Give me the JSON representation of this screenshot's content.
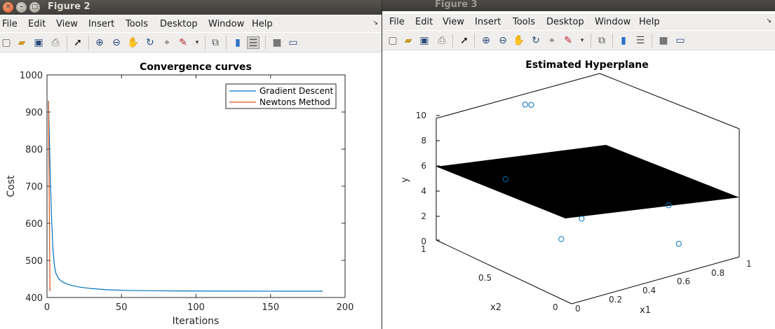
{
  "figure2": {
    "title": "Figure 2",
    "menu": [
      "File",
      "Edit",
      "View",
      "Insert",
      "Tools",
      "Desktop",
      "Window",
      "Help"
    ],
    "toolbar_icons": [
      "new-icon",
      "open-icon",
      "save-icon",
      "print-icon",
      "pointer-icon",
      "zoom-in-icon",
      "zoom-out-icon",
      "pan-icon",
      "rotate-icon",
      "data-cursor-icon",
      "brush-icon",
      "link-plot-icon",
      "colorbar-icon",
      "legend-icon",
      "hide-tools-icon",
      "show-tools-icon"
    ],
    "chart_data": {
      "type": "line",
      "title": "Convergence curves",
      "xlabel": "Iterations",
      "ylabel": "Cost",
      "xlim": [
        0,
        200
      ],
      "ylim": [
        400,
        1000
      ],
      "xticks": [
        0,
        50,
        100,
        150,
        200
      ],
      "yticks": [
        400,
        500,
        600,
        700,
        800,
        900,
        1000
      ],
      "legend_position": "top-right",
      "series": [
        {
          "name": "Gradient Descent",
          "color": "#0072bd",
          "x": [
            1,
            2,
            3,
            4,
            5,
            6,
            8,
            10,
            13,
            17,
            22,
            30,
            40,
            55,
            75,
            100,
            130,
            160,
            185
          ],
          "y": [
            930,
            760,
            620,
            530,
            485,
            465,
            450,
            443,
            437,
            432,
            428,
            424,
            421,
            419,
            418,
            417.5,
            417.2,
            417,
            417
          ]
        },
        {
          "name": "Newtons Method",
          "color": "#d95319",
          "x": [
            1,
            2
          ],
          "y": [
            930,
            417
          ]
        }
      ]
    }
  },
  "figure3": {
    "title": "Figure 3",
    "menu": [
      "File",
      "Edit",
      "View",
      "Insert",
      "Tools",
      "Desktop",
      "Window",
      "Help"
    ],
    "toolbar_icons": [
      "new-icon",
      "open-icon",
      "save-icon",
      "print-icon",
      "pointer-icon",
      "zoom-in-icon",
      "zoom-out-icon",
      "pan-icon",
      "rotate-icon",
      "data-cursor-icon",
      "brush-icon",
      "link-plot-icon",
      "colorbar-icon",
      "legend-icon",
      "hide-tools-icon",
      "show-tools-icon"
    ],
    "chart_data": {
      "type": "scatter",
      "title": "Estimated Hyperplane",
      "xlabel": "x1",
      "ylabel": "y",
      "zlabel": "x2",
      "x1_ticks": [
        "0",
        "0.2",
        "0.4",
        "0.6",
        "0.8",
        "1"
      ],
      "x2_ticks": [
        "0",
        "0.5",
        "1"
      ],
      "y_ticks": [
        "0",
        "2",
        "4",
        "6",
        "8",
        "10"
      ],
      "points": [
        {
          "x1": 0.05,
          "x2": 0.55,
          "y": 7.0
        },
        {
          "x1": 0.1,
          "x2": 0.05,
          "y": 6.2
        },
        {
          "x1": 0.1,
          "x2": 0.2,
          "y": 3.8
        },
        {
          "x1": 0.45,
          "x2": 0.9,
          "y": 9.7
        },
        {
          "x1": 0.47,
          "x2": 0.88,
          "y": 9.7
        },
        {
          "x1": 0.7,
          "x2": 0.15,
          "y": 4.5
        },
        {
          "x1": 0.72,
          "x2": 0.1,
          "y": 1.6
        }
      ],
      "plane_color": "#000000",
      "marker_color": "#0072bd"
    }
  }
}
